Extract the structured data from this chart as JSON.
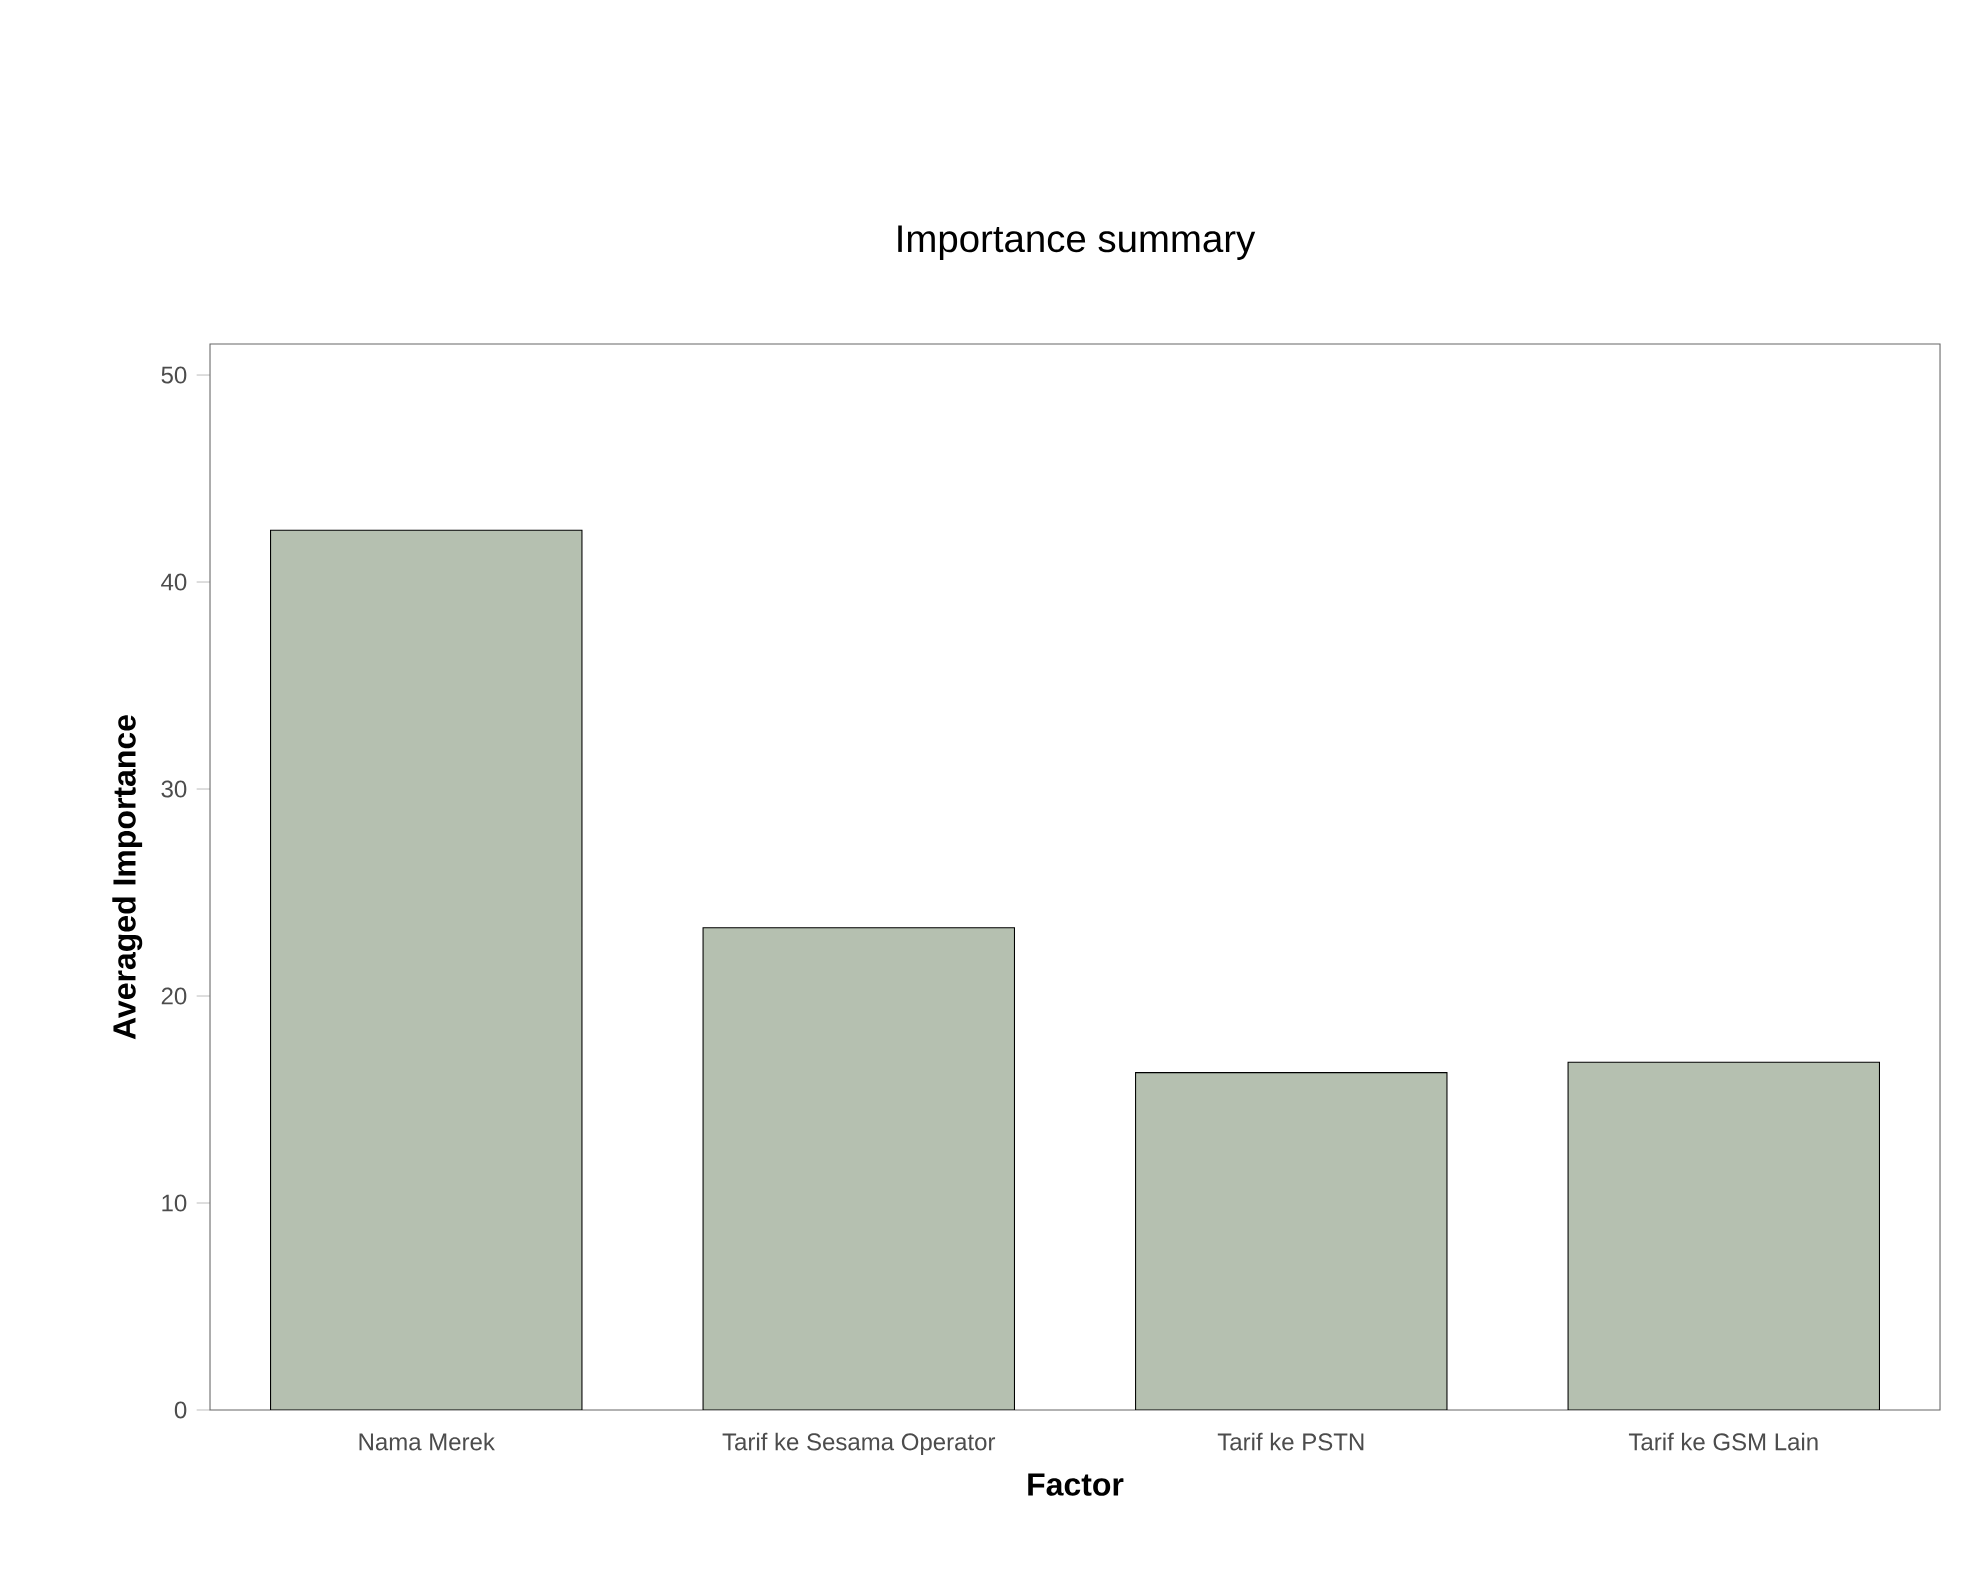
{
  "chart_data": {
    "type": "bar",
    "title": "Importance summary",
    "xlabel": "Factor",
    "ylabel": "Averaged Importance",
    "categories": [
      "Nama Merek",
      "Tarif ke Sesama Operator",
      "Tarif ke PSTN",
      "Tarif ke GSM Lain"
    ],
    "values": [
      42.5,
      23.3,
      16.3,
      16.8
    ],
    "color": "#b5c0b0",
    "ylim": [
      0,
      51.5
    ],
    "yticks": [
      0,
      10,
      20,
      30,
      40,
      50
    ],
    "grid": false
  }
}
